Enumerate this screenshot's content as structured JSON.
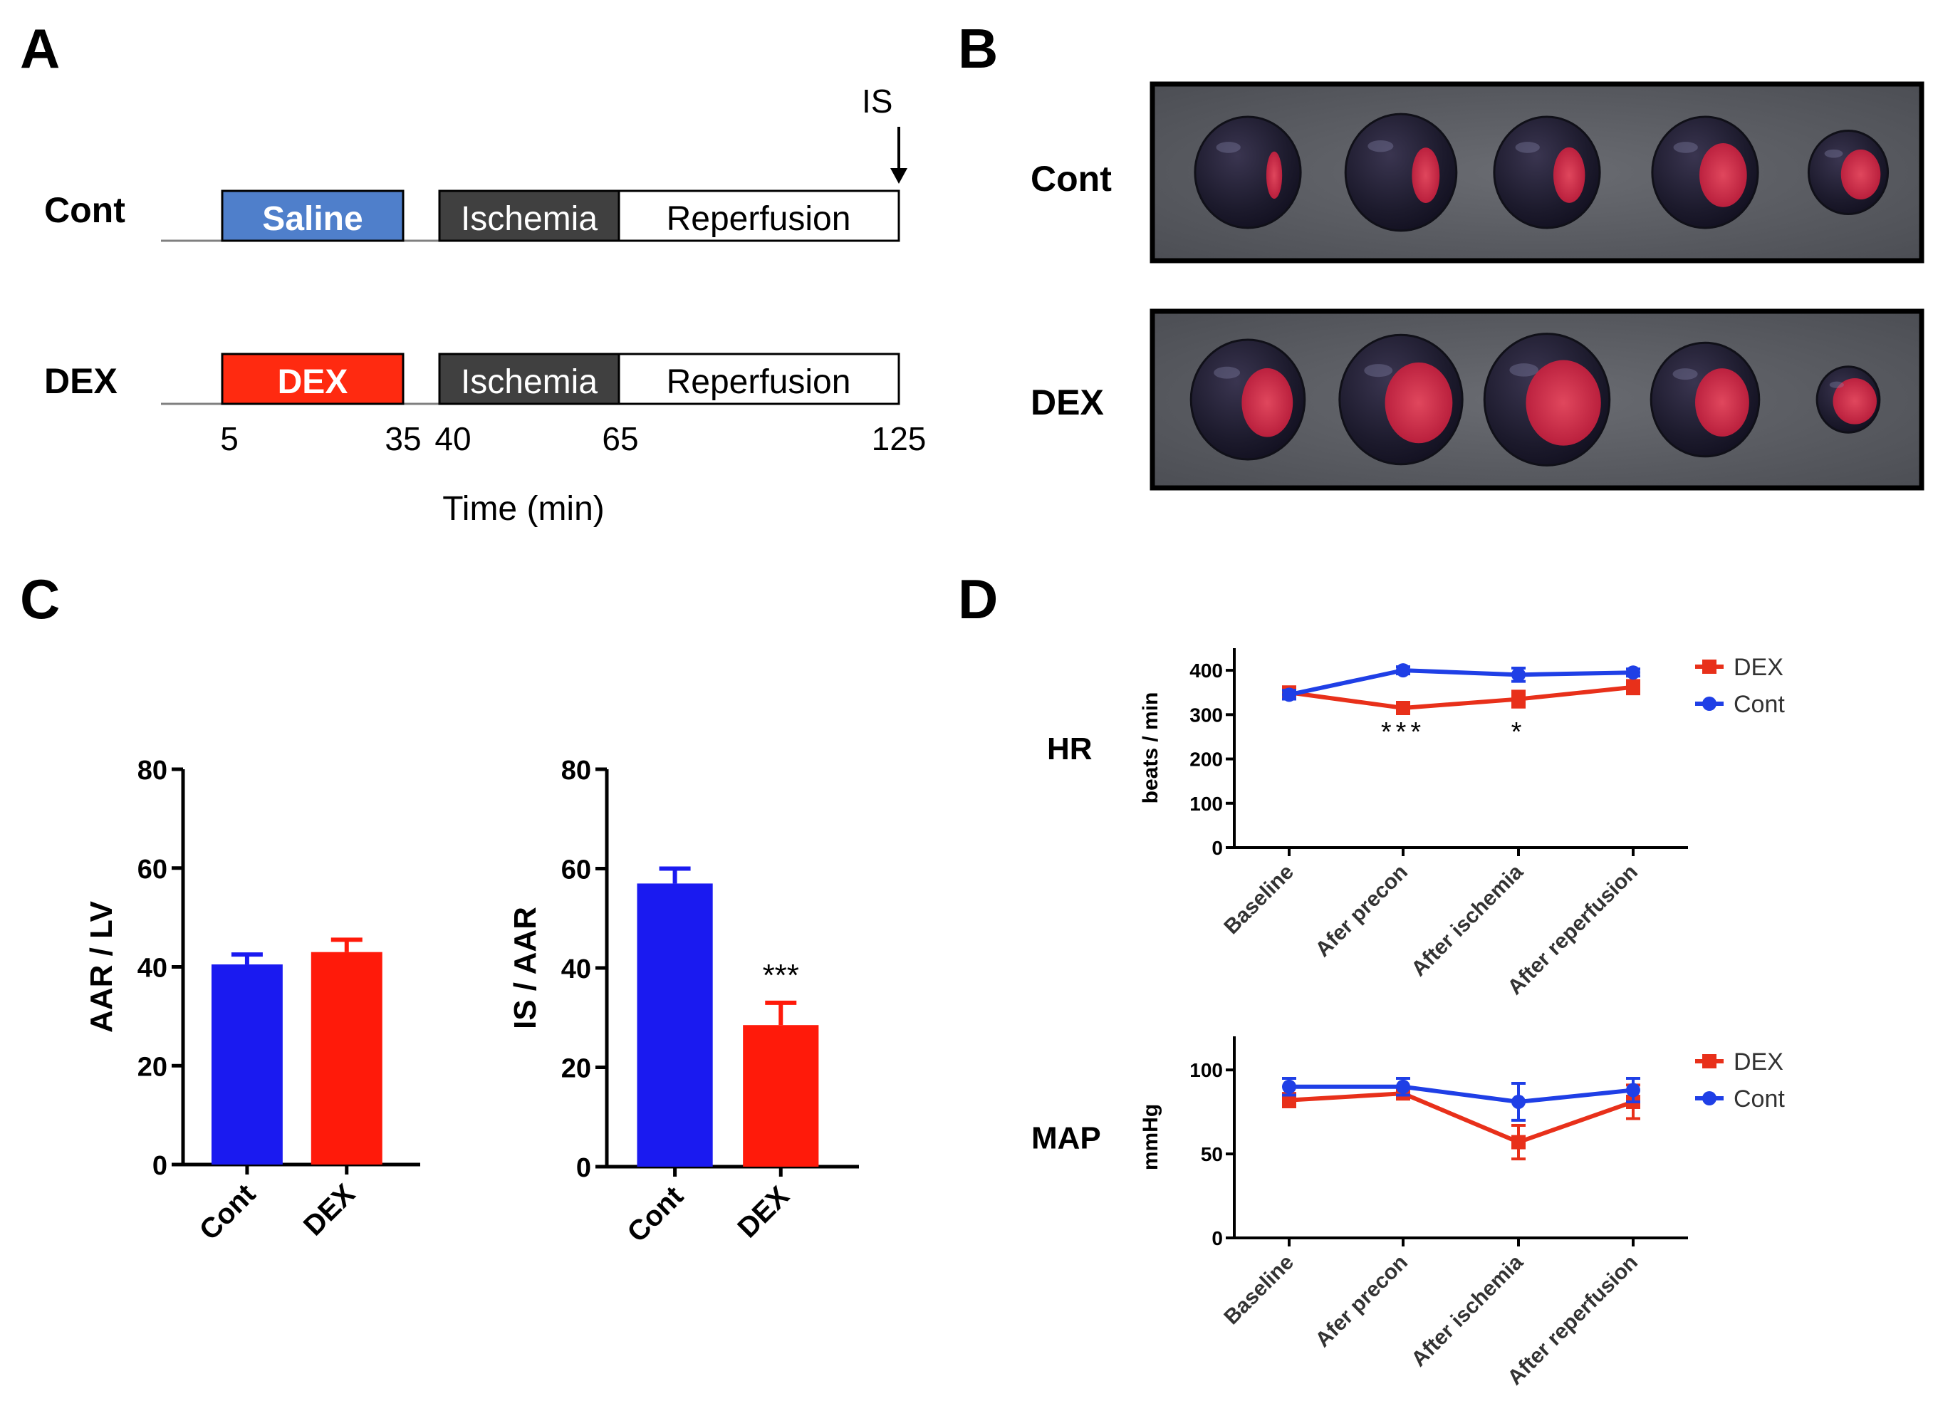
{
  "panels": {
    "a": "A",
    "b": "B",
    "c": "C",
    "d": "D"
  },
  "protocol": {
    "is_label": "IS",
    "rows": [
      {
        "label": "Cont",
        "treatment": "Saline",
        "treatment_color": "#4F7FCB",
        "ischemia": "Ischemia",
        "reperfusion": "Reperfusion"
      },
      {
        "label": "DEX",
        "treatment": "DEX",
        "treatment_color": "#FF2A10",
        "ischemia": "Ischemia",
        "reperfusion": "Reperfusion"
      }
    ],
    "ischemia_color": "#404040",
    "time_ticks": [
      "5",
      "35",
      "40",
      "65",
      "125"
    ],
    "time_values": [
      5,
      35,
      40,
      65,
      125
    ],
    "axis_label": "Time (min)"
  },
  "photos": {
    "rows": [
      {
        "label": "Cont",
        "slices": [
          {
            "scale": 1.0,
            "red": 0.15
          },
          {
            "scale": 1.05,
            "red": 0.25
          },
          {
            "scale": 1.0,
            "red": 0.3
          },
          {
            "scale": 1.0,
            "red": 0.45
          },
          {
            "scale": 0.75,
            "red": 0.5
          }
        ]
      },
      {
        "label": "DEX",
        "slices": [
          {
            "scale": 1.0,
            "red": 0.45
          },
          {
            "scale": 1.08,
            "red": 0.55
          },
          {
            "scale": 1.1,
            "red": 0.6
          },
          {
            "scale": 0.95,
            "red": 0.5
          },
          {
            "scale": 0.55,
            "red": 0.7
          }
        ]
      }
    ]
  },
  "colors": {
    "blue": "#1A1AF0",
    "red": "#FF1A0A",
    "line_blue": "#1F3FE6",
    "line_red": "#E8301A"
  },
  "chart_data": [
    {
      "id": "aar_lv",
      "type": "bar",
      "categories": [
        "Cont",
        "DEX"
      ],
      "values": [
        40.5,
        43
      ],
      "errors": [
        2,
        2.5
      ],
      "ylabel": "AAR / LV",
      "ylim": [
        0,
        80
      ],
      "yticks": [
        0,
        20,
        40,
        60,
        80
      ],
      "annotations": []
    },
    {
      "id": "is_aar",
      "type": "bar",
      "categories": [
        "Cont",
        "DEX"
      ],
      "values": [
        57,
        28.5
      ],
      "errors": [
        3,
        4.5
      ],
      "ylabel": "IS / AAR",
      "ylim": [
        0,
        80
      ],
      "yticks": [
        0,
        20,
        40,
        60,
        80
      ],
      "annotations": [
        {
          "category": "DEX",
          "text": "***"
        }
      ]
    },
    {
      "id": "hr",
      "type": "line",
      "title": "HR",
      "ylabel": "beats / min",
      "ylim": [
        0,
        450
      ],
      "yticks": [
        0,
        100,
        200,
        300,
        400
      ],
      "categories": [
        "Baseline",
        "Afer precon",
        "After ischemia",
        "After reperfusion"
      ],
      "series": [
        {
          "name": "DEX",
          "values": [
            350,
            315,
            335,
            362
          ],
          "errors": [
            8,
            10,
            18,
            15
          ]
        },
        {
          "name": "Cont",
          "values": [
            345,
            400,
            390,
            395
          ],
          "errors": [
            10,
            8,
            15,
            8
          ]
        }
      ],
      "annotations": [
        {
          "category_index": 1,
          "text": "***"
        },
        {
          "category_index": 2,
          "text": "*"
        }
      ]
    },
    {
      "id": "map",
      "type": "line",
      "title": "MAP",
      "ylabel": "mmHg",
      "ylim": [
        0,
        120
      ],
      "yticks": [
        0,
        50,
        100
      ],
      "categories": [
        "Baseline",
        "Afer precon",
        "After ischemia",
        "After reperfusion"
      ],
      "series": [
        {
          "name": "DEX",
          "values": [
            82,
            86,
            57,
            81
          ],
          "errors": [
            4,
            3,
            10,
            10
          ]
        },
        {
          "name": "Cont",
          "values": [
            90,
            90,
            81,
            88
          ],
          "errors": [
            5,
            5,
            11,
            7
          ]
        }
      ],
      "annotations": []
    }
  ]
}
